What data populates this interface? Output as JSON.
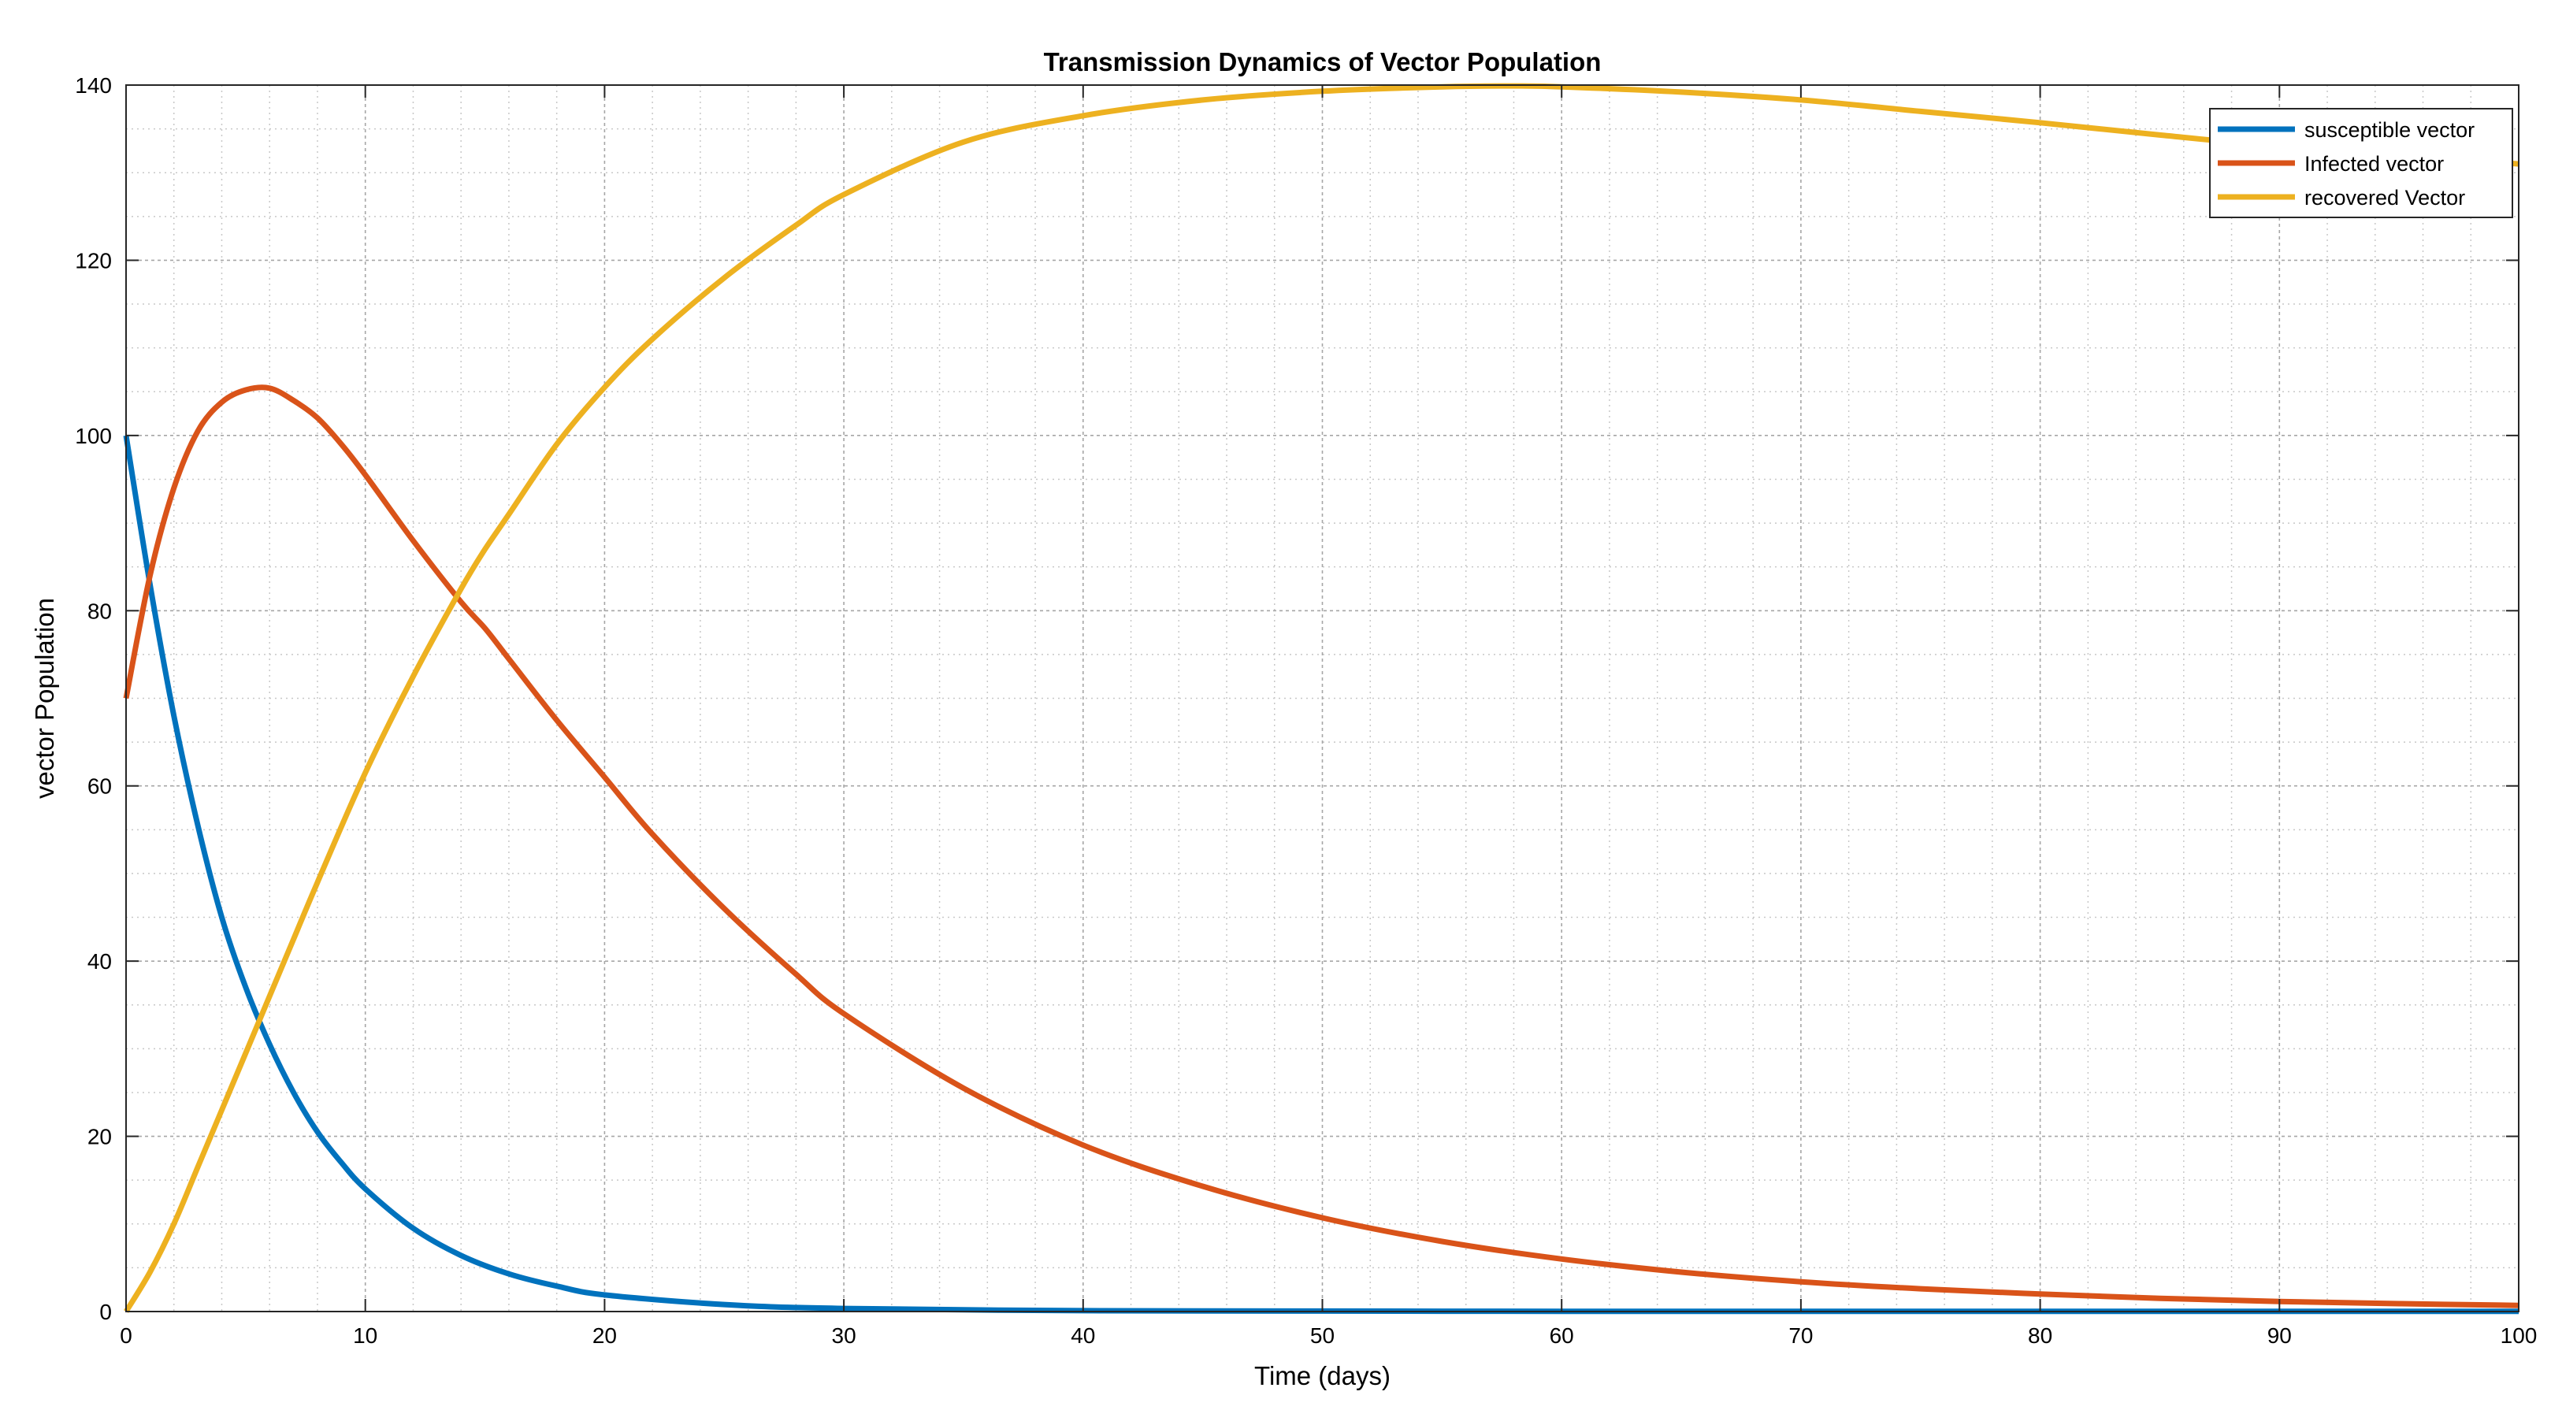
{
  "chart_data": {
    "type": "line",
    "title": "Transmission Dynamics of Vector Population",
    "xlabel": "Time (days)",
    "ylabel": "vector Population",
    "xlim": [
      0,
      100
    ],
    "ylim": [
      0,
      140
    ],
    "x_ticks": [
      0,
      10,
      20,
      30,
      40,
      50,
      60,
      70,
      80,
      90,
      100
    ],
    "y_ticks": [
      0,
      20,
      40,
      60,
      80,
      100,
      120,
      140
    ],
    "x_tick_labels": [
      "0",
      "10",
      "20",
      "30",
      "40",
      "50",
      "60",
      "70",
      "80",
      "90",
      "100"
    ],
    "y_tick_labels": [
      "0",
      "20",
      "40",
      "60",
      "80",
      "100",
      "120",
      "140"
    ],
    "grid": true,
    "minor_grid": true,
    "legend_position": "top-right",
    "series": [
      {
        "name": "susceptible vector",
        "color": "#0072BD",
        "x": [
          0,
          1,
          2,
          3,
          4,
          5,
          6,
          7,
          8,
          9,
          10,
          12,
          14,
          16,
          18,
          20,
          25,
          30,
          40,
          50,
          60,
          70,
          80,
          90,
          100
        ],
        "y": [
          100,
          83,
          68,
          55.5,
          45,
          37,
          30.5,
          25,
          20.5,
          17,
          14,
          9.5,
          6.4,
          4.3,
          2.9,
          1.9,
          0.8,
          0.35,
          0.1,
          0.05,
          0.03,
          0.02,
          0.02,
          0.02,
          0.02
        ]
      },
      {
        "name": "Infected vector",
        "color": "#D95319",
        "x": [
          0,
          1,
          2,
          3,
          4,
          5,
          6,
          7,
          8,
          9,
          10,
          12,
          14,
          15,
          16,
          18,
          20,
          22,
          25,
          28,
          30,
          35,
          40,
          45,
          50,
          55,
          60,
          65,
          70,
          75,
          80,
          85,
          90,
          95,
          100
        ],
        "y": [
          70,
          84,
          94,
          100.5,
          103.8,
          105.2,
          105.4,
          104,
          102,
          99,
          95.5,
          88,
          81,
          78,
          74.5,
          67.5,
          61,
          54.5,
          46,
          38.5,
          34,
          25.5,
          19,
          14.3,
          10.7,
          8,
          6,
          4.5,
          3.4,
          2.6,
          2,
          1.5,
          1.15,
          0.9,
          0.7
        ]
      },
      {
        "name": "recovered Vector",
        "color": "#EDB120",
        "x": [
          0,
          1,
          2,
          3,
          4,
          5,
          6,
          7,
          8,
          10,
          12,
          14,
          15,
          16,
          18,
          20,
          22,
          25,
          28,
          30,
          35,
          40,
          45,
          50,
          55,
          58,
          60,
          65,
          70,
          75,
          80,
          85,
          90,
          95,
          100
        ],
        "y": [
          0,
          4.5,
          10,
          16.5,
          23,
          29.5,
          36,
          42.5,
          49,
          61.5,
          72.5,
          82.5,
          87,
          91,
          99,
          105.5,
          111,
          118,
          124,
          127.5,
          133.5,
          136.5,
          138.3,
          139.3,
          139.8,
          139.9,
          139.8,
          139.2,
          138.3,
          137,
          135.7,
          134.3,
          133,
          132,
          131
        ]
      }
    ]
  }
}
